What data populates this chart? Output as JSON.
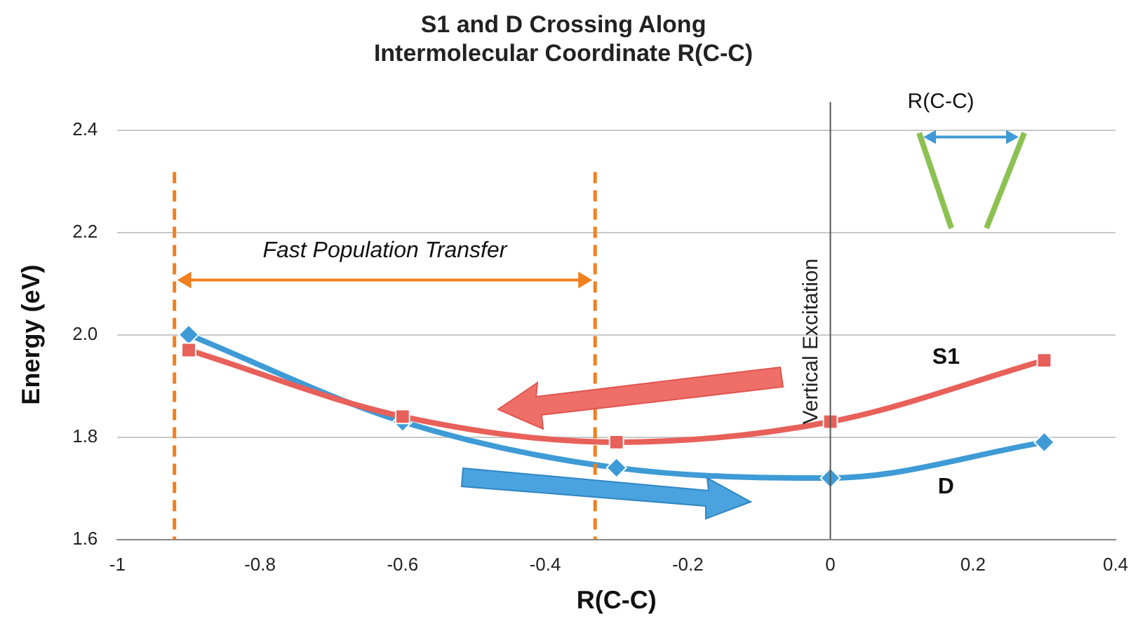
{
  "chart_data": {
    "type": "line",
    "title": "S1 and D Crossing Along\nIntermolecular Coordinate R(C-C)",
    "xlabel": "R(C-C)",
    "ylabel": "Energy (eV)",
    "x": [
      -0.9,
      -0.6,
      -0.3,
      0,
      0.3
    ],
    "series": [
      {
        "name": "S1",
        "color": "#e8605a",
        "marker": "square",
        "values": [
          1.97,
          1.84,
          1.79,
          1.83,
          1.95
        ]
      },
      {
        "name": "D",
        "color": "#3e9bd6",
        "marker": "diamond",
        "values": [
          2.0,
          1.83,
          1.74,
          1.72,
          1.79
        ]
      }
    ],
    "xlim": [
      -1,
      0.4
    ],
    "xticks": [
      -1,
      -0.8,
      -0.6,
      -0.4,
      -0.2,
      0,
      0.2,
      0.4
    ],
    "ylim": [
      1.6,
      2.4
    ],
    "yticks": [
      1.6,
      1.8,
      {
        "value": 2,
        "label": "2.0"
      },
      2.2,
      2.4
    ],
    "grid": "y",
    "legend": false,
    "ref_lines": [
      {
        "axis": "x",
        "value": -0.92,
        "color": "#f08020",
        "line_style": "dashed"
      },
      {
        "axis": "x",
        "value": -0.33,
        "color": "#f08020",
        "line_style": "dashed"
      },
      {
        "axis": "x",
        "value": 0,
        "label": "Vertical Excitation",
        "color": "#555555",
        "line_style": "solid"
      }
    ],
    "annotations": [
      "Fast Population Transfer",
      "R(C-C)"
    ]
  }
}
